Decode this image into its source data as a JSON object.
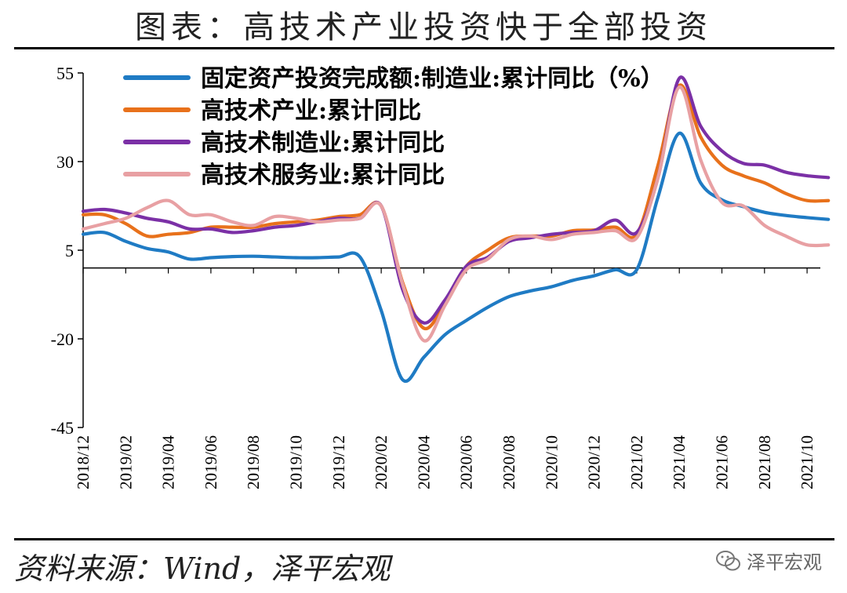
{
  "title": "图表：高技术产业投资快于全部投资",
  "source": "资料来源：Wind，泽平宏观",
  "watermark": {
    "text": "泽平宏观",
    "icon": "wechat-icon"
  },
  "chart_data": {
    "type": "line",
    "ylim": [
      -45,
      55
    ],
    "yticks": [
      55,
      30,
      5,
      -20,
      -45
    ],
    "x": [
      "2018/12",
      "2019/01",
      "2019/02",
      "2019/03",
      "2019/04",
      "2019/05",
      "2019/06",
      "2019/07",
      "2019/08",
      "2019/09",
      "2019/10",
      "2019/11",
      "2019/12",
      "2020/01",
      "2020/02",
      "2020/03",
      "2020/04",
      "2020/05",
      "2020/06",
      "2020/07",
      "2020/08",
      "2020/09",
      "2020/10",
      "2020/11",
      "2020/12",
      "2021/01",
      "2021/02",
      "2021/03",
      "2021/04",
      "2021/05",
      "2021/06",
      "2021/07",
      "2021/08",
      "2021/09",
      "2021/10",
      "2021/11"
    ],
    "xticks": [
      "2018/12",
      "2019/02",
      "2019/04",
      "2019/06",
      "2019/08",
      "2019/10",
      "2019/12",
      "2020/02",
      "2020/04",
      "2020/06",
      "2020/08",
      "2020/10",
      "2020/12",
      "2021/02",
      "2021/04",
      "2021/06",
      "2021/08",
      "2021/10"
    ],
    "grid": false,
    "legend_position": "top",
    "series": [
      {
        "name": "固定资产投资完成额:制造业:累计同比（%）",
        "color": "#1F7BC4",
        "values": [
          9.5,
          10.0,
          7.5,
          5.5,
          4.5,
          2.5,
          2.9,
          3.2,
          3.3,
          3.1,
          2.9,
          2.9,
          3.1,
          3.1,
          -12.0,
          -31.5,
          -25.2,
          -18.8,
          -14.8,
          -11.1,
          -8.1,
          -6.5,
          -5.3,
          -3.5,
          -2.2,
          -0.5,
          -0.5,
          20.0,
          38.0,
          24.0,
          19.2,
          17.3,
          15.7,
          14.8,
          14.2,
          13.7
        ]
      },
      {
        "name": "高技术产业:累计同比",
        "color": "#E8711B",
        "values": [
          15.0,
          15.0,
          12.5,
          9.0,
          9.5,
          10.0,
          11.5,
          11.5,
          11.5,
          12.5,
          13.0,
          13.5,
          14.5,
          15.0,
          17.5,
          -4.0,
          -17.0,
          -10.0,
          0.5,
          5.0,
          8.5,
          9.0,
          9.0,
          10.5,
          10.7,
          11.5,
          9.5,
          29.0,
          51.5,
          37.0,
          29.0,
          26.0,
          24.0,
          21.0,
          19.0,
          19.0
        ]
      },
      {
        "name": "高技术制造业:累计同比",
        "color": "#7B30A6",
        "values": [
          16.0,
          16.5,
          15.5,
          14.0,
          13.0,
          11.0,
          11.0,
          10.0,
          10.5,
          11.5,
          12.0,
          13.0,
          14.0,
          14.0,
          17.5,
          -6.0,
          -15.5,
          -9.0,
          0.5,
          3.0,
          7.5,
          8.5,
          9.5,
          10.0,
          10.5,
          13.5,
          10.0,
          25.5,
          53.5,
          40.0,
          33.0,
          29.5,
          29.0,
          27.0,
          26.0,
          25.5
        ]
      },
      {
        "name": "高技术服务业:累计同比",
        "color": "#E8A0A3",
        "values": [
          11.0,
          12.5,
          14.0,
          17.0,
          19.0,
          15.0,
          15.0,
          13.0,
          12.0,
          14.5,
          14.0,
          13.0,
          13.5,
          14.0,
          17.5,
          -4.5,
          -20.5,
          -10.5,
          -0.5,
          2.5,
          8.0,
          9.0,
          8.0,
          9.5,
          10.0,
          10.5,
          8.5,
          25.5,
          51.0,
          30.5,
          18.5,
          17.5,
          12.0,
          9.0,
          6.5,
          6.5
        ]
      }
    ]
  }
}
